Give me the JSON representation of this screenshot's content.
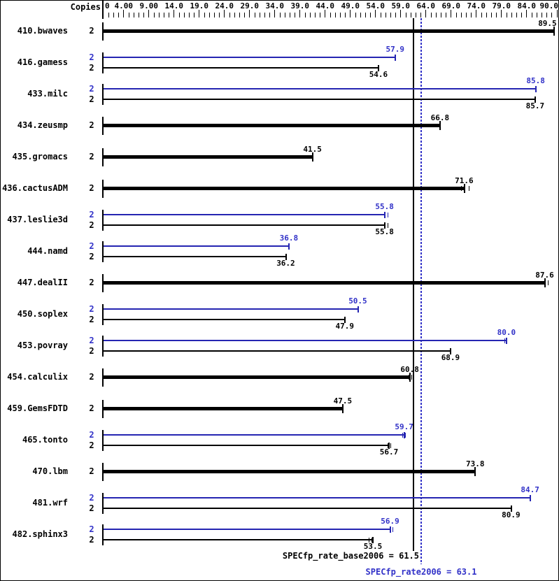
{
  "header": {
    "copies_label": "Copies"
  },
  "colors": {
    "base_bar": "#000000",
    "peak_bar": "#2525b2",
    "peak_text": "#3232c8",
    "background": "#ffffff"
  },
  "chart_data": {
    "type": "bar",
    "orientation": "horizontal",
    "title": "",
    "xlabel": "Copies",
    "xlim": [
      0,
      90
    ],
    "grid": false,
    "legend_position": "none",
    "axis": {
      "ticks": [
        {
          "value": 0,
          "label": "0",
          "align": "left"
        },
        {
          "value": 4,
          "label": "4.00",
          "align": "center"
        },
        {
          "value": 9,
          "label": "9.00",
          "align": "center"
        },
        {
          "value": 14,
          "label": "14.0",
          "align": "center"
        },
        {
          "value": 19,
          "label": "19.0",
          "align": "center"
        },
        {
          "value": 24,
          "label": "24.0",
          "align": "center"
        },
        {
          "value": 29,
          "label": "29.0",
          "align": "center"
        },
        {
          "value": 34,
          "label": "34.0",
          "align": "center"
        },
        {
          "value": 39,
          "label": "39.0",
          "align": "center"
        },
        {
          "value": 44,
          "label": "44.0",
          "align": "center"
        },
        {
          "value": 49,
          "label": "49.0",
          "align": "center"
        },
        {
          "value": 54,
          "label": "54.0",
          "align": "center"
        },
        {
          "value": 59,
          "label": "59.0",
          "align": "center"
        },
        {
          "value": 64,
          "label": "64.0",
          "align": "center"
        },
        {
          "value": 69,
          "label": "69.0",
          "align": "center"
        },
        {
          "value": 74,
          "label": "74.0",
          "align": "center"
        },
        {
          "value": 79,
          "label": "79.0",
          "align": "center"
        },
        {
          "value": 84,
          "label": "84.0",
          "align": "center"
        },
        {
          "value": 90,
          "label": "90.0",
          "align": "right"
        }
      ],
      "minor_tick_step": 1
    },
    "reference_lines": [
      {
        "name": "base",
        "label": "SPECfp_rate_base2006 = 61.5",
        "value": 61.5,
        "style": "solid"
      },
      {
        "name": "peak",
        "label": "SPECfp_rate2006 = 63.1",
        "value": 63.1,
        "style": "dotted"
      }
    ],
    "groups": [
      {
        "benchmark": "410.bwaves",
        "bars": [
          {
            "kind": "base",
            "copies": "2",
            "value": 89.5,
            "label": "89.5",
            "thick": true
          }
        ]
      },
      {
        "benchmark": "416.gamess",
        "bars": [
          {
            "kind": "peak",
            "copies": "2",
            "value": 57.9,
            "label": "57.9"
          },
          {
            "kind": "base",
            "copies": "2",
            "value": 54.6,
            "label": "54.6"
          }
        ]
      },
      {
        "benchmark": "433.milc",
        "bars": [
          {
            "kind": "peak",
            "copies": "2",
            "value": 85.8,
            "label": "85.8"
          },
          {
            "kind": "base",
            "copies": "2",
            "value": 85.7,
            "label": "85.7"
          }
        ]
      },
      {
        "benchmark": "434.zeusmp",
        "bars": [
          {
            "kind": "base",
            "copies": "2",
            "value": 66.8,
            "label": "66.8",
            "thick": true
          }
        ]
      },
      {
        "benchmark": "435.gromacs",
        "bars": [
          {
            "kind": "base",
            "copies": "2",
            "value": 41.5,
            "label": "41.5",
            "thick": true
          }
        ]
      },
      {
        "benchmark": "436.cactusADM",
        "bars": [
          {
            "kind": "base",
            "copies": "2",
            "value": 71.6,
            "label": "71.6",
            "thick": true,
            "marks": [
              71.0,
              72.5
            ]
          }
        ]
      },
      {
        "benchmark": "437.leslie3d",
        "bars": [
          {
            "kind": "peak",
            "copies": "2",
            "value": 55.8,
            "label": "55.8",
            "marks": [
              55.8,
              56.4
            ]
          },
          {
            "kind": "base",
            "copies": "2",
            "value": 55.8,
            "label": "55.8",
            "marks": [
              55.8,
              56.4
            ]
          }
        ]
      },
      {
        "benchmark": "444.namd",
        "bars": [
          {
            "kind": "peak",
            "copies": "2",
            "value": 36.8,
            "label": "36.8"
          },
          {
            "kind": "base",
            "copies": "2",
            "value": 36.2,
            "label": "36.2"
          }
        ]
      },
      {
        "benchmark": "447.dealII",
        "bars": [
          {
            "kind": "base",
            "copies": "2",
            "value": 87.6,
            "label": "87.6",
            "thick": true,
            "marks": [
              87.6,
              88.2
            ]
          }
        ]
      },
      {
        "benchmark": "450.soplex",
        "bars": [
          {
            "kind": "peak",
            "copies": "2",
            "value": 50.5,
            "label": "50.5"
          },
          {
            "kind": "base",
            "copies": "2",
            "value": 47.9,
            "label": "47.9"
          }
        ]
      },
      {
        "benchmark": "453.povray",
        "bars": [
          {
            "kind": "peak",
            "copies": "2",
            "value": 80.0,
            "label": "80.0",
            "marks": [
              79.6,
              80.1
            ]
          },
          {
            "kind": "base",
            "copies": "2",
            "value": 68.9,
            "label": "68.9"
          }
        ]
      },
      {
        "benchmark": "454.calculix",
        "bars": [
          {
            "kind": "base",
            "copies": "2",
            "value": 60.8,
            "label": "60.8",
            "thick": true,
            "marks": [
              60.6,
              61.2
            ]
          }
        ]
      },
      {
        "benchmark": "459.GemsFDTD",
        "bars": [
          {
            "kind": "base",
            "copies": "2",
            "value": 47.5,
            "label": "47.5",
            "thick": true
          }
        ]
      },
      {
        "benchmark": "465.tonto",
        "bars": [
          {
            "kind": "peak",
            "copies": "2",
            "value": 59.7,
            "label": "59.7",
            "marks": [
              59.4,
              59.9
            ]
          },
          {
            "kind": "base",
            "copies": "2",
            "value": 56.7,
            "label": "56.7",
            "marks": [
              56.5,
              57.0
            ]
          }
        ]
      },
      {
        "benchmark": "470.lbm",
        "bars": [
          {
            "kind": "base",
            "copies": "2",
            "value": 73.8,
            "label": "73.8",
            "thick": true
          }
        ]
      },
      {
        "benchmark": "481.wrf",
        "bars": [
          {
            "kind": "peak",
            "copies": "2",
            "value": 84.7,
            "label": "84.7"
          },
          {
            "kind": "base",
            "copies": "2",
            "value": 80.9,
            "label": "80.9"
          }
        ]
      },
      {
        "benchmark": "482.sphinx3",
        "bars": [
          {
            "kind": "peak",
            "copies": "2",
            "value": 56.9,
            "label": "56.9",
            "marks": [
              56.9,
              57.4
            ]
          },
          {
            "kind": "base",
            "copies": "2",
            "value": 53.5,
            "label": "53.5",
            "marks": [
              52.7,
              53.2
            ]
          }
        ]
      }
    ]
  }
}
